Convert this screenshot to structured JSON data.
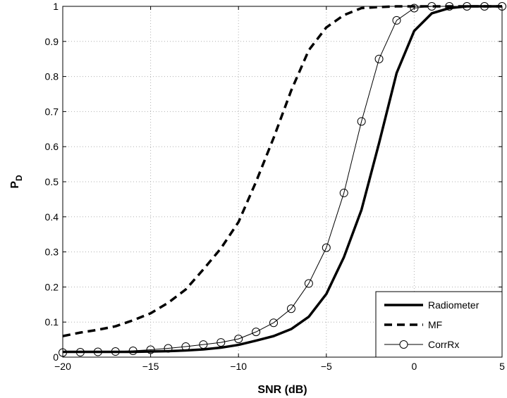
{
  "chart_data": {
    "type": "line",
    "title": "",
    "xlabel": "SNR (dB)",
    "ylabel_main": "P",
    "ylabel_sub": "D",
    "xlim": [
      -20,
      5
    ],
    "ylim": [
      0,
      1
    ],
    "xticks": [
      -20,
      -15,
      -10,
      -5,
      0,
      5
    ],
    "xtick_labels": [
      "−20",
      "−15",
      "−10",
      "−5",
      "0",
      "5"
    ],
    "yticks": [
      0,
      0.1,
      0.2,
      0.3,
      0.4,
      0.5,
      0.6,
      0.7,
      0.8,
      0.9,
      1
    ],
    "ytick_labels": [
      "0",
      "0.1",
      "0.2",
      "0.3",
      "0.4",
      "0.5",
      "0.6",
      "0.7",
      "0.8",
      "0.9",
      "1"
    ],
    "grid": true,
    "legend_position": "bottom-right",
    "series": [
      {
        "name": "Radiometer",
        "style": "solid-thick",
        "color": "#000000",
        "x": [
          -20,
          -19,
          -18,
          -17,
          -16,
          -15,
          -14,
          -13,
          -12,
          -11,
          -10,
          -9,
          -8,
          -7,
          -6,
          -5,
          -4,
          -3,
          -2,
          -1,
          0,
          1,
          2,
          3,
          4,
          5
        ],
        "y": [
          0.015,
          0.015,
          0.015,
          0.015,
          0.015,
          0.016,
          0.017,
          0.019,
          0.022,
          0.027,
          0.035,
          0.047,
          0.06,
          0.08,
          0.115,
          0.18,
          0.285,
          0.42,
          0.61,
          0.81,
          0.93,
          0.98,
          0.995,
          1.0,
          1.0,
          1.0
        ]
      },
      {
        "name": "MF",
        "style": "dashed-thick",
        "color": "#000000",
        "x": [
          -20,
          -19,
          -18,
          -17,
          -16,
          -15,
          -14,
          -13,
          -12,
          -11,
          -10,
          -9,
          -8,
          -7,
          -6,
          -5,
          -4,
          -3,
          -2,
          -1,
          0,
          1,
          2,
          3,
          4,
          5
        ],
        "y": [
          0.06,
          0.07,
          0.078,
          0.088,
          0.105,
          0.125,
          0.155,
          0.193,
          0.25,
          0.31,
          0.385,
          0.5,
          0.625,
          0.76,
          0.875,
          0.94,
          0.975,
          0.995,
          0.998,
          1.0,
          1.0,
          1.0,
          1.0,
          1.0,
          1.0,
          1.0
        ]
      },
      {
        "name": "CorrRx",
        "style": "solid-thin-circle",
        "color": "#000000",
        "x": [
          -20,
          -19,
          -18,
          -17,
          -16,
          -15,
          -14,
          -13,
          -12,
          -11,
          -10,
          -9,
          -8,
          -7,
          -6,
          -5,
          -4,
          -3,
          -2,
          -1,
          0,
          1,
          2,
          3,
          4,
          5
        ],
        "y": [
          0.013,
          0.014,
          0.015,
          0.016,
          0.018,
          0.021,
          0.025,
          0.03,
          0.036,
          0.042,
          0.052,
          0.072,
          0.098,
          0.138,
          0.21,
          0.312,
          0.468,
          0.672,
          0.85,
          0.96,
          0.995,
          1.0,
          1.0,
          1.0,
          1.0,
          1.0
        ]
      }
    ]
  }
}
